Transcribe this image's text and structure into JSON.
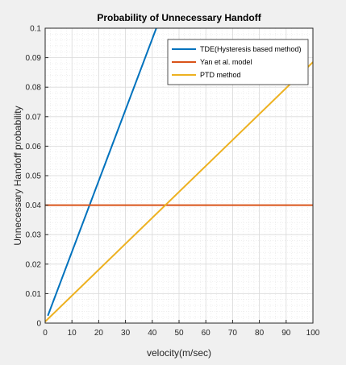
{
  "chart_data": {
    "type": "line",
    "title": "Probability of Unnecessary Handoff",
    "xlabel": "velocity(m/sec)",
    "ylabel": "Unnecessary Handoff probability",
    "xlim": [
      0,
      100
    ],
    "ylim": [
      0,
      0.1
    ],
    "xticks": [
      "0",
      "10",
      "20",
      "30",
      "40",
      "50",
      "60",
      "70",
      "80",
      "90",
      "100"
    ],
    "yticks": [
      "0",
      "0.01",
      "0.02",
      "0.03",
      "0.04",
      "0.05",
      "0.06",
      "0.07",
      "0.08",
      "0.09",
      "0.1"
    ],
    "grid": true,
    "minor_grid": true,
    "legend_position": "top-right",
    "series": [
      {
        "name": "TDE(Hysteresis based method)",
        "color": "#0072bd",
        "x": [
          1,
          41.5
        ],
        "y": [
          0.0025,
          0.1
        ]
      },
      {
        "name": "Yan et al. model",
        "color": "#d95319",
        "x": [
          0,
          100
        ],
        "y": [
          0.04,
          0.04
        ]
      },
      {
        "name": "PTD method",
        "color": "#edb120",
        "x": [
          0,
          100
        ],
        "y": [
          0.0005,
          0.0885
        ]
      }
    ]
  }
}
